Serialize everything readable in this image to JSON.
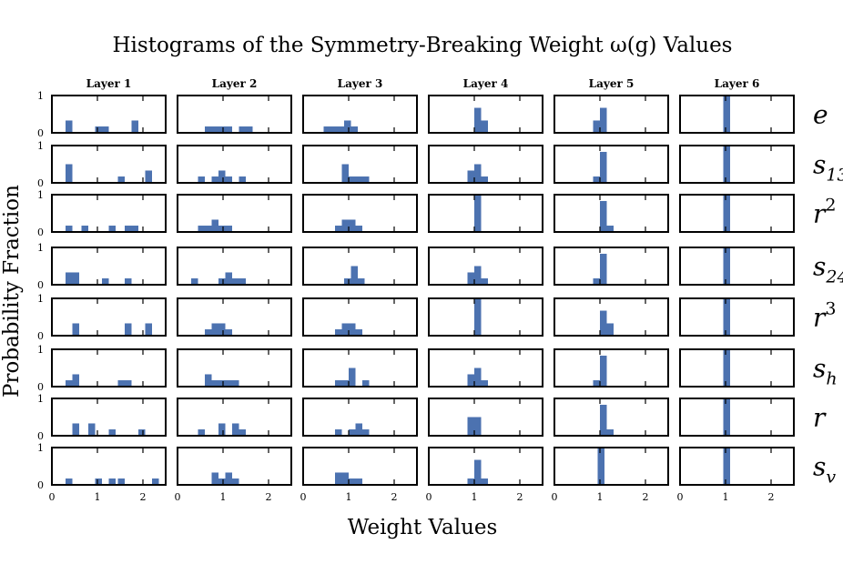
{
  "chart_data": {
    "type": "bar",
    "title": "Histograms of the Symmetry-Breaking Weight ω(g) Values",
    "xlabel": "Weight Values",
    "ylabel": "Probability Fraction",
    "xlim": [
      0,
      2.5
    ],
    "ylim": [
      0,
      1
    ],
    "x_ticks": [
      "0",
      "1",
      "2"
    ],
    "y_ticks": [
      "0",
      "1"
    ],
    "bin_width": 0.15,
    "columns": [
      "Layer 1",
      "Layer 2",
      "Layer 3",
      "Layer 4",
      "Layer 5",
      "Layer 6"
    ],
    "rows": [
      {
        "base": "e",
        "sub": "",
        "sup": ""
      },
      {
        "base": "s",
        "sub": "13",
        "sup": ""
      },
      {
        "base": "r",
        "sub": "",
        "sup": "2"
      },
      {
        "base": "s",
        "sub": "24",
        "sup": ""
      },
      {
        "base": "r",
        "sub": "",
        "sup": "3"
      },
      {
        "base": "s",
        "sub": "h",
        "sup": ""
      },
      {
        "base": "r",
        "sub": "",
        "sup": ""
      },
      {
        "base": "s",
        "sub": "v",
        "sup": ""
      }
    ],
    "histograms": [
      [
        [
          [
            0.3,
            0.33
          ],
          [
            0.95,
            0.17
          ],
          [
            1.1,
            0.17
          ],
          [
            1.75,
            0.33
          ]
        ],
        [
          [
            0.3,
            0.5
          ],
          [
            1.45,
            0.17
          ],
          [
            2.05,
            0.33
          ]
        ],
        [
          [
            0.3,
            0.17
          ],
          [
            0.65,
            0.17
          ],
          [
            1.25,
            0.17
          ],
          [
            1.6,
            0.17
          ],
          [
            1.75,
            0.17
          ]
        ],
        [
          [
            0.3,
            0.33
          ],
          [
            0.45,
            0.33
          ],
          [
            1.1,
            0.17
          ],
          [
            1.6,
            0.17
          ]
        ],
        [
          [
            0.45,
            0.33
          ],
          [
            1.6,
            0.33
          ],
          [
            2.05,
            0.33
          ]
        ],
        [
          [
            0.3,
            0.17
          ],
          [
            0.45,
            0.33
          ],
          [
            1.45,
            0.17
          ],
          [
            1.6,
            0.17
          ]
        ],
        [
          [
            0.45,
            0.33
          ],
          [
            0.8,
            0.33
          ],
          [
            1.25,
            0.17
          ],
          [
            1.9,
            0.17
          ]
        ],
        [
          [
            0.3,
            0.17
          ],
          [
            0.95,
            0.17
          ],
          [
            1.25,
            0.17
          ],
          [
            1.45,
            0.17
          ],
          [
            2.2,
            0.17
          ]
        ]
      ],
      [
        [
          [
            0.6,
            0.17
          ],
          [
            0.75,
            0.17
          ],
          [
            0.9,
            0.17
          ],
          [
            1.05,
            0.17
          ],
          [
            1.35,
            0.17
          ],
          [
            1.5,
            0.17
          ]
        ],
        [
          [
            0.45,
            0.17
          ],
          [
            0.75,
            0.17
          ],
          [
            0.9,
            0.33
          ],
          [
            1.05,
            0.17
          ],
          [
            1.35,
            0.17
          ]
        ],
        [
          [
            0.45,
            0.17
          ],
          [
            0.6,
            0.17
          ],
          [
            0.75,
            0.33
          ],
          [
            0.9,
            0.17
          ],
          [
            1.05,
            0.17
          ]
        ],
        [
          [
            0.3,
            0.17
          ],
          [
            0.9,
            0.17
          ],
          [
            1.05,
            0.33
          ],
          [
            1.2,
            0.17
          ],
          [
            1.35,
            0.17
          ]
        ],
        [
          [
            0.6,
            0.17
          ],
          [
            0.75,
            0.33
          ],
          [
            0.9,
            0.33
          ],
          [
            1.05,
            0.17
          ]
        ],
        [
          [
            0.6,
            0.33
          ],
          [
            0.75,
            0.17
          ],
          [
            0.9,
            0.17
          ],
          [
            1.05,
            0.17
          ],
          [
            1.2,
            0.17
          ]
        ],
        [
          [
            0.45,
            0.17
          ],
          [
            0.9,
            0.33
          ],
          [
            1.2,
            0.33
          ],
          [
            1.35,
            0.17
          ]
        ],
        [
          [
            0.75,
            0.33
          ],
          [
            0.9,
            0.17
          ],
          [
            1.05,
            0.33
          ],
          [
            1.2,
            0.17
          ]
        ]
      ],
      [
        [
          [
            0.45,
            0.17
          ],
          [
            0.6,
            0.17
          ],
          [
            0.75,
            0.17
          ],
          [
            0.9,
            0.33
          ],
          [
            1.05,
            0.17
          ]
        ],
        [
          [
            0.85,
            0.5
          ],
          [
            1.0,
            0.17
          ],
          [
            1.15,
            0.17
          ],
          [
            1.3,
            0.17
          ]
        ],
        [
          [
            0.7,
            0.17
          ],
          [
            0.85,
            0.33
          ],
          [
            1.0,
            0.33
          ],
          [
            1.15,
            0.17
          ]
        ],
        [
          [
            0.9,
            0.17
          ],
          [
            1.05,
            0.5
          ],
          [
            1.2,
            0.17
          ]
        ],
        [
          [
            0.7,
            0.17
          ],
          [
            0.85,
            0.33
          ],
          [
            1.0,
            0.33
          ],
          [
            1.15,
            0.17
          ]
        ],
        [
          [
            0.7,
            0.17
          ],
          [
            0.85,
            0.17
          ],
          [
            1.0,
            0.5
          ],
          [
            1.3,
            0.17
          ]
        ],
        [
          [
            0.7,
            0.17
          ],
          [
            1.0,
            0.17
          ],
          [
            1.15,
            0.33
          ],
          [
            1.3,
            0.17
          ]
        ],
        [
          [
            0.7,
            0.33
          ],
          [
            0.85,
            0.33
          ],
          [
            1.0,
            0.17
          ],
          [
            1.15,
            0.17
          ]
        ]
      ],
      [
        [
          [
            1.0,
            0.67
          ],
          [
            1.15,
            0.33
          ]
        ],
        [
          [
            0.85,
            0.33
          ],
          [
            1.0,
            0.5
          ],
          [
            1.15,
            0.17
          ]
        ],
        [
          [
            1.0,
            1.0
          ]
        ],
        [
          [
            0.85,
            0.33
          ],
          [
            1.0,
            0.5
          ],
          [
            1.15,
            0.17
          ]
        ],
        [
          [
            1.0,
            1.0
          ]
        ],
        [
          [
            0.85,
            0.33
          ],
          [
            1.0,
            0.5
          ],
          [
            1.15,
            0.17
          ]
        ],
        [
          [
            0.85,
            0.5
          ],
          [
            1.0,
            0.5
          ]
        ],
        [
          [
            0.85,
            0.17
          ],
          [
            1.0,
            0.67
          ],
          [
            1.15,
            0.17
          ]
        ]
      ],
      [
        [
          [
            0.85,
            0.33
          ],
          [
            1.0,
            0.67
          ]
        ],
        [
          [
            0.85,
            0.17
          ],
          [
            1.0,
            0.83
          ]
        ],
        [
          [
            1.0,
            0.83
          ],
          [
            1.15,
            0.17
          ]
        ],
        [
          [
            0.85,
            0.17
          ],
          [
            1.0,
            0.83
          ]
        ],
        [
          [
            1.0,
            0.67
          ],
          [
            1.15,
            0.33
          ]
        ],
        [
          [
            0.85,
            0.17
          ],
          [
            1.0,
            0.83
          ]
        ],
        [
          [
            1.0,
            0.83
          ],
          [
            1.15,
            0.17
          ]
        ],
        [
          [
            0.95,
            1.0
          ]
        ]
      ],
      [
        [
          [
            0.95,
            1.0
          ]
        ],
        [
          [
            0.95,
            1.0
          ]
        ],
        [
          [
            0.95,
            1.0
          ]
        ],
        [
          [
            0.95,
            1.0
          ]
        ],
        [
          [
            0.95,
            1.0
          ]
        ],
        [
          [
            0.95,
            1.0
          ]
        ],
        [
          [
            0.95,
            1.0
          ]
        ],
        [
          [
            0.95,
            1.0
          ]
        ]
      ]
    ],
    "colors": {
      "bar": "#4c72b0",
      "frame": "#000000"
    }
  }
}
